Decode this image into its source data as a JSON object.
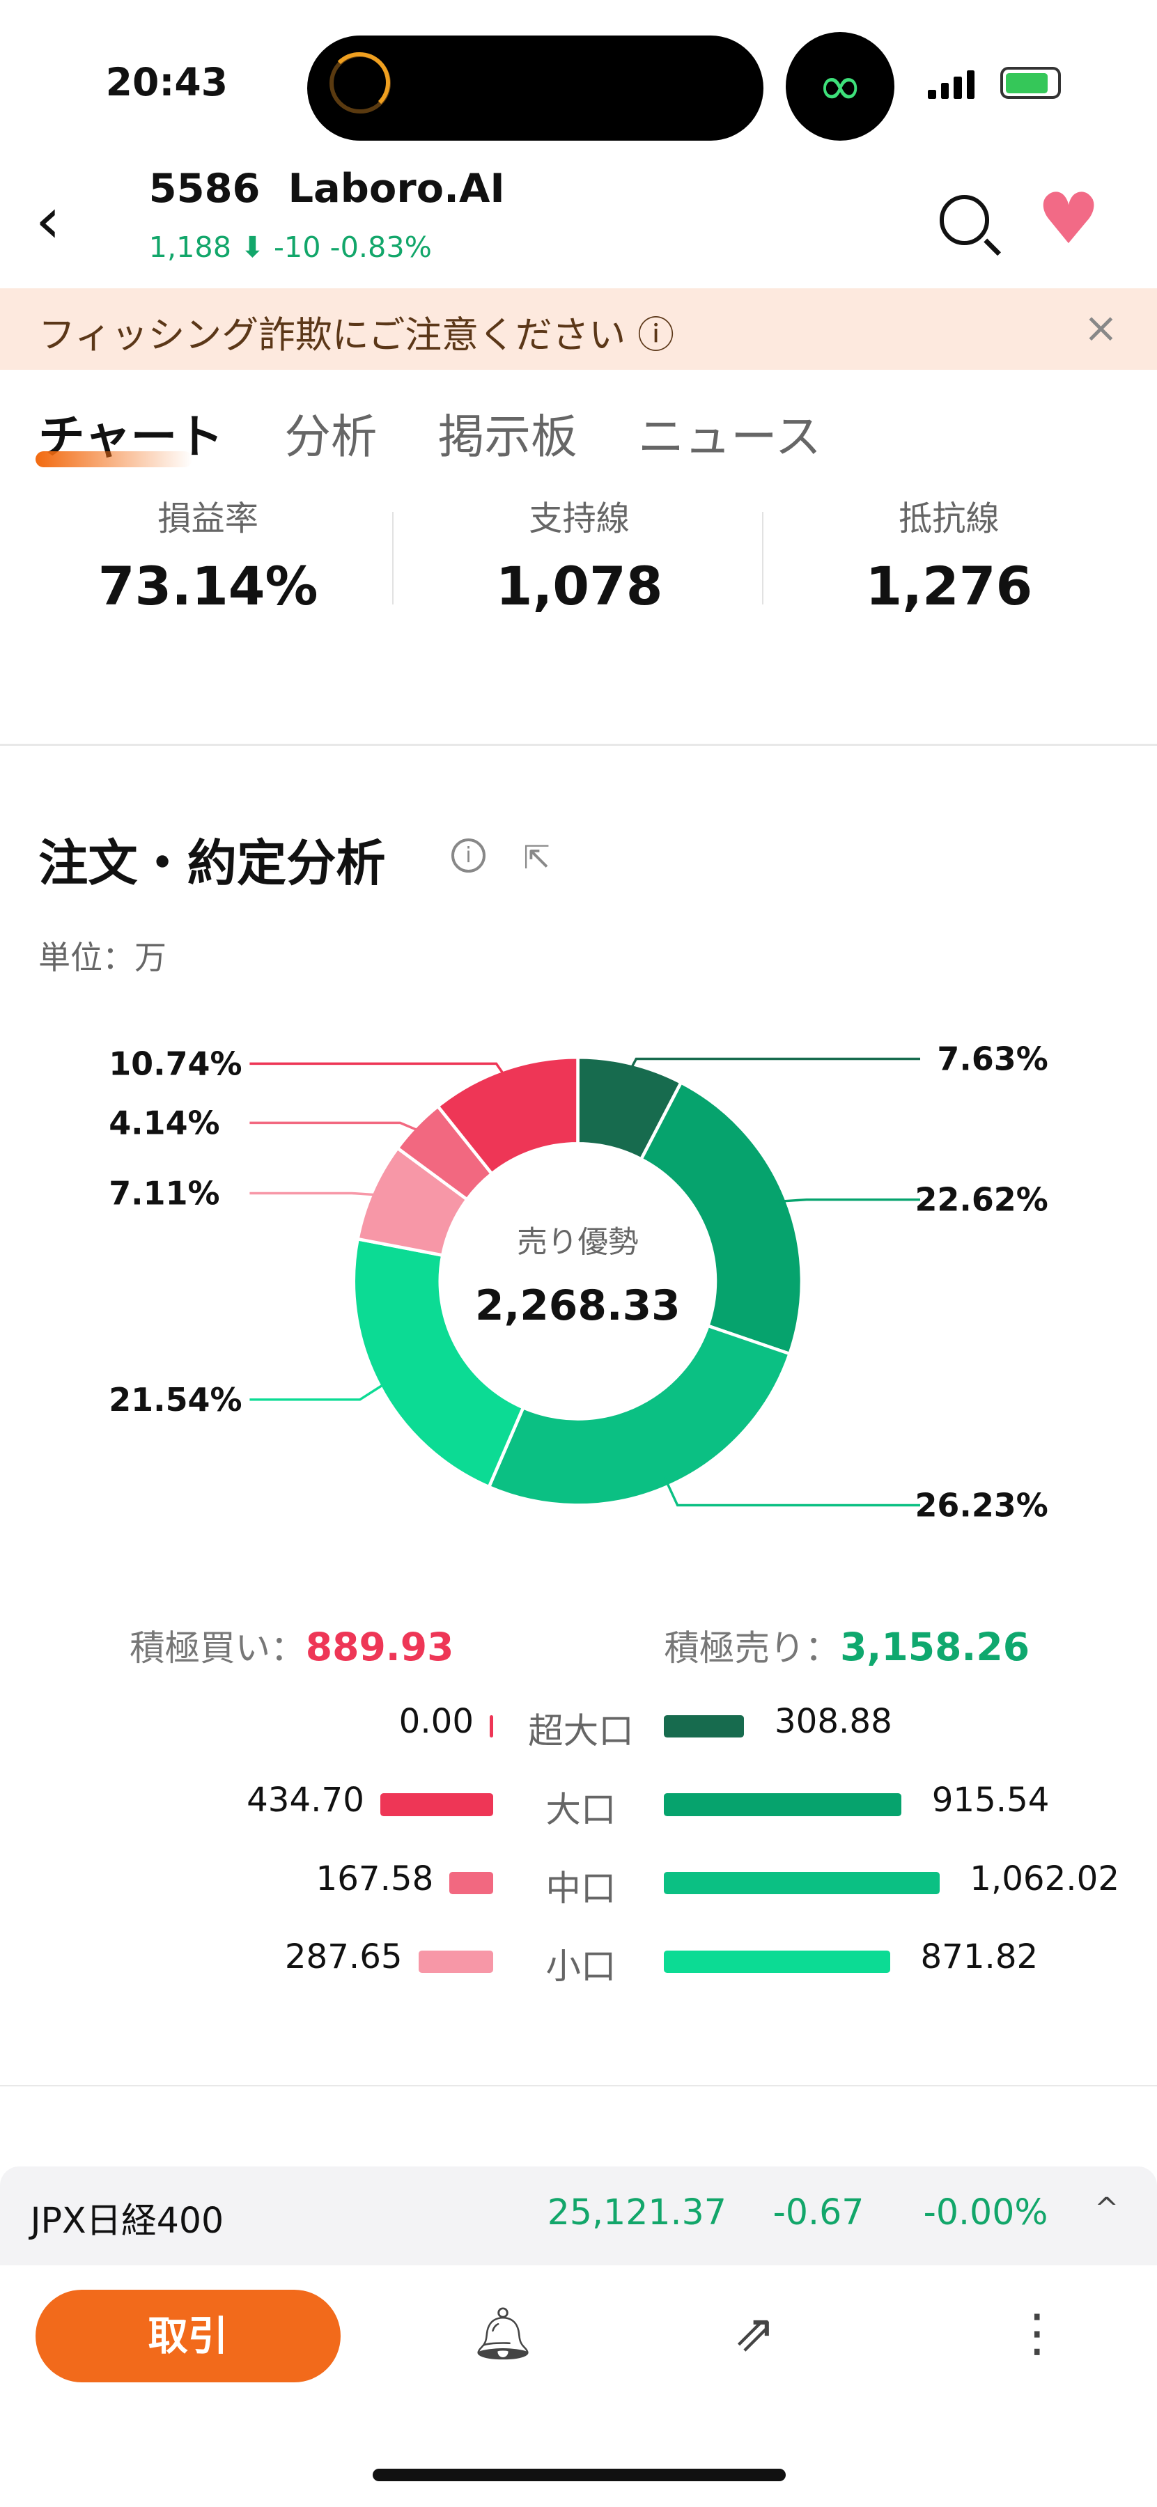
{
  "status_bar": {
    "time": "20:43",
    "link_icon": "link-icon",
    "battery": "charging"
  },
  "header": {
    "code": "5586",
    "name": "Laboro.AI",
    "price": "1,188",
    "direction_icon": "arrow-down-icon",
    "change": "-10",
    "change_pct": "-0.83%",
    "change_color": "#12a66a"
  },
  "banner": {
    "text": "フィッシング詐欺にご注意ください",
    "info_icon": "ⓘ",
    "close": "×"
  },
  "tabs": [
    {
      "label": "チャート",
      "active": true
    },
    {
      "label": "分析"
    },
    {
      "label": "掲示板"
    },
    {
      "label": "ニュース"
    }
  ],
  "stats": [
    {
      "label": "損益率",
      "value": "73.14%"
    },
    {
      "label": "支持線",
      "value": "1,078"
    },
    {
      "label": "抵抗線",
      "value": "1,276"
    }
  ],
  "section": {
    "title": "注文・約定分析",
    "unit": "単位：万"
  },
  "chart_data": {
    "type": "pie",
    "donut": true,
    "center_label": "売り優勢",
    "center_value": "2,268.33",
    "slices": [
      {
        "group": "sell",
        "category": "超大口",
        "pct": 7.63,
        "label": "7.63%",
        "color": "#176b4e"
      },
      {
        "group": "sell",
        "category": "大口",
        "pct": 22.62,
        "label": "22.62%",
        "color": "#06a36d"
      },
      {
        "group": "sell",
        "category": "中口",
        "pct": 26.23,
        "label": "26.23%",
        "color": "#0bc083"
      },
      {
        "group": "sell",
        "category": "小口",
        "pct": 21.54,
        "label": "21.54%",
        "color": "#0cdb94"
      },
      {
        "group": "buy",
        "category": "小口",
        "pct": 7.11,
        "label": "7.11%",
        "color": "#f797a7"
      },
      {
        "group": "buy",
        "category": "中口",
        "pct": 4.14,
        "label": "4.14%",
        "color": "#f26880"
      },
      {
        "group": "buy",
        "category": "大口",
        "pct": 10.74,
        "label": "10.74%",
        "color": "#ee3656"
      }
    ]
  },
  "totals": {
    "buy_label": "積極買い：",
    "buy_value": "889.93",
    "buy_color": "#ee3656",
    "sell_label": "積極売り：",
    "sell_value": "3,158.26",
    "sell_color": "#0fa86e"
  },
  "breakdown": [
    {
      "category": "超大口",
      "buy": "0.00",
      "buy_num": 0,
      "sell": "308.88",
      "sell_num": 308.88,
      "buy_color": "#ee3656",
      "sell_color": "#176b4e"
    },
    {
      "category": "大口",
      "buy": "434.70",
      "buy_num": 434.7,
      "sell": "915.54",
      "sell_num": 915.54,
      "buy_color": "#ee3656",
      "sell_color": "#06a36d"
    },
    {
      "category": "中口",
      "buy": "167.58",
      "buy_num": 167.58,
      "sell": "1,062.02",
      "sell_num": 1062.02,
      "buy_color": "#f26880",
      "sell_color": "#0bc083"
    },
    {
      "category": "小口",
      "buy": "287.65",
      "buy_num": 287.65,
      "sell": "871.82",
      "sell_num": 871.82,
      "buy_color": "#f797a7",
      "sell_color": "#0cdb94"
    }
  ],
  "index_bar": {
    "name": "JPX日経400",
    "value": "25,121.37",
    "change": "-0.67",
    "change_pct": "-0.00%"
  },
  "bottom": {
    "trade": "取引",
    "alert_icon": "bell-plus-icon",
    "share_icon": "share-icon",
    "more_icon": "more-icon"
  }
}
